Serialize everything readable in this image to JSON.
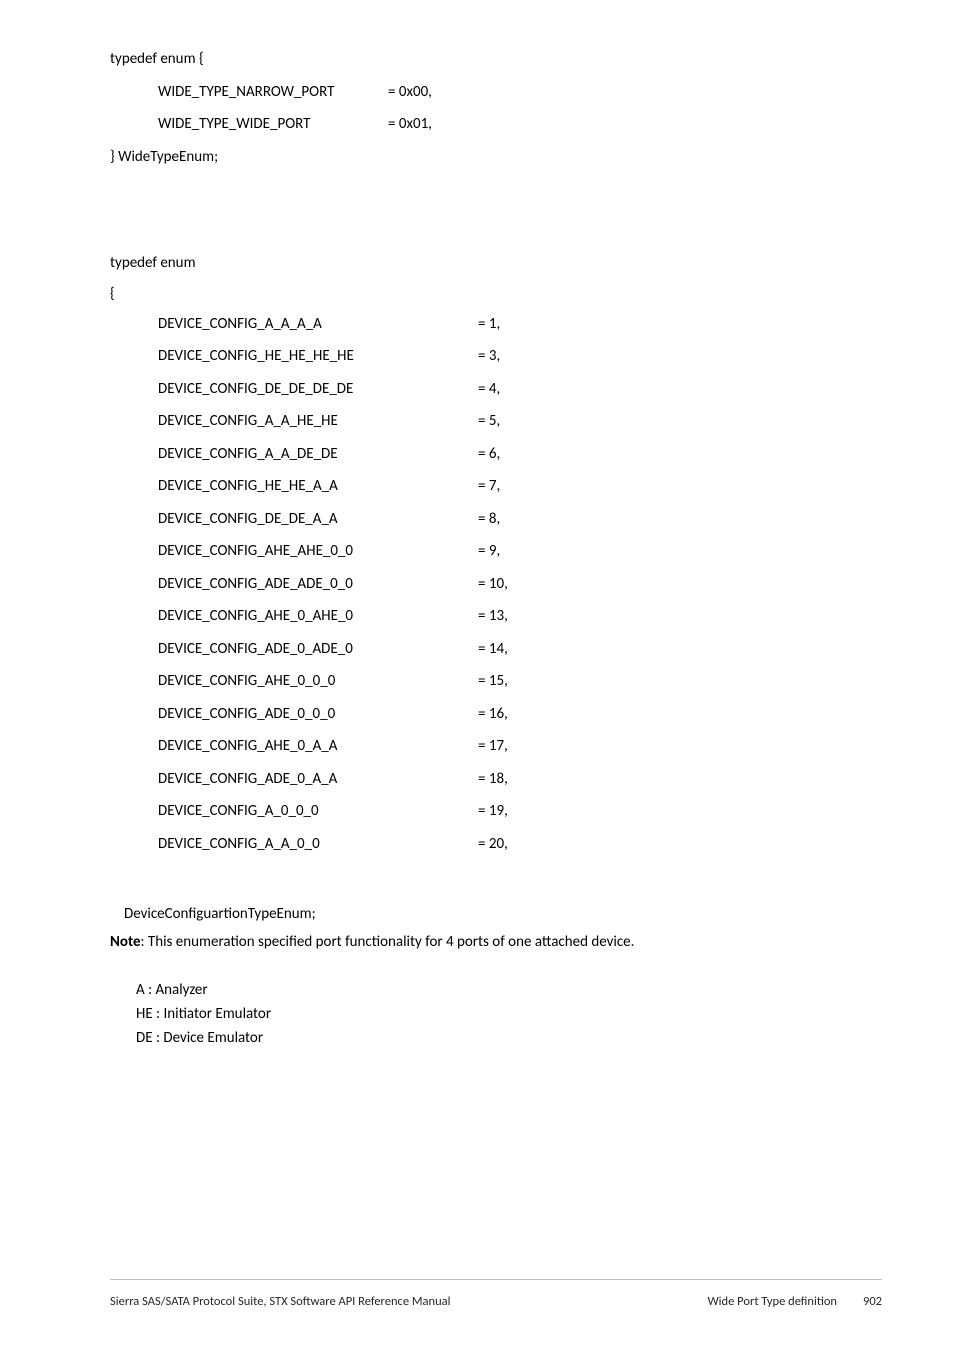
{
  "typedef1_open": "typedef enum {",
  "typedef1_close": "} WideTypeEnum;",
  "wide_rows": [
    {
      "name": "WIDE_TYPE_NARROW_PORT",
      "val": "= 0x00,"
    },
    {
      "name": "WIDE_TYPE_WIDE_PORT",
      "val": "= 0x01,"
    }
  ],
  "typedef2_open": "typedef enum",
  "brace_open": "{",
  "cfg_rows": [
    {
      "name": "DEVICE_CONFIG_A_A_A_A",
      "val": "= 1,"
    },
    {
      "name": "DEVICE_CONFIG_HE_HE_HE_HE",
      "val": "= 3,"
    },
    {
      "name": "DEVICE_CONFIG_DE_DE_DE_DE",
      "val": "= 4,"
    },
    {
      "name": "DEVICE_CONFIG_A_A_HE_HE",
      "val": "= 5,"
    },
    {
      "name": "DEVICE_CONFIG_A_A_DE_DE",
      "val": "= 6,"
    },
    {
      "name": "DEVICE_CONFIG_HE_HE_A_A",
      "val": "= 7,"
    },
    {
      "name": "DEVICE_CONFIG_DE_DE_A_A",
      "val": "= 8,"
    },
    {
      "name": "DEVICE_CONFIG_AHE_AHE_0_0",
      "val": "= 9,"
    },
    {
      "name": "DEVICE_CONFIG_ADE_ADE_0_0",
      "val": "= 10,"
    },
    {
      "name": "DEVICE_CONFIG_AHE_0_AHE_0",
      "val": "= 13,"
    },
    {
      "name": "DEVICE_CONFIG_ADE_0_ADE_0",
      "val": "= 14,"
    },
    {
      "name": "DEVICE_CONFIG_AHE_0_0_0",
      "val": "= 15,"
    },
    {
      "name": "DEVICE_CONFIG_ADE_0_0_0",
      "val": "= 16,"
    },
    {
      "name": "DEVICE_CONFIG_AHE_0_A_A",
      "val": "= 17,"
    },
    {
      "name": "DEVICE_CONFIG_ADE_0_A_A",
      "val": "= 18,"
    },
    {
      "name": "DEVICE_CONFIG_A_0_0_0",
      "val": "= 19,"
    },
    {
      "name": "DEVICE_CONFIG_A_A_0_0",
      "val": "= 20,"
    }
  ],
  "tail_typename": "DeviceConfiguartionTypeEnum;",
  "note_bold": "Note",
  "note_rest": ": This enumeration specified port functionality for 4 ports of one attached device.",
  "legend": {
    "a": "A : Analyzer",
    "he": "HE : Initiator Emulator",
    "de": "DE : Device Emulator"
  },
  "footer": {
    "left": "Sierra SAS/SATA Protocol Suite, STX Software API Reference Manual",
    "section": "Wide Port Type definition",
    "page": "902"
  }
}
